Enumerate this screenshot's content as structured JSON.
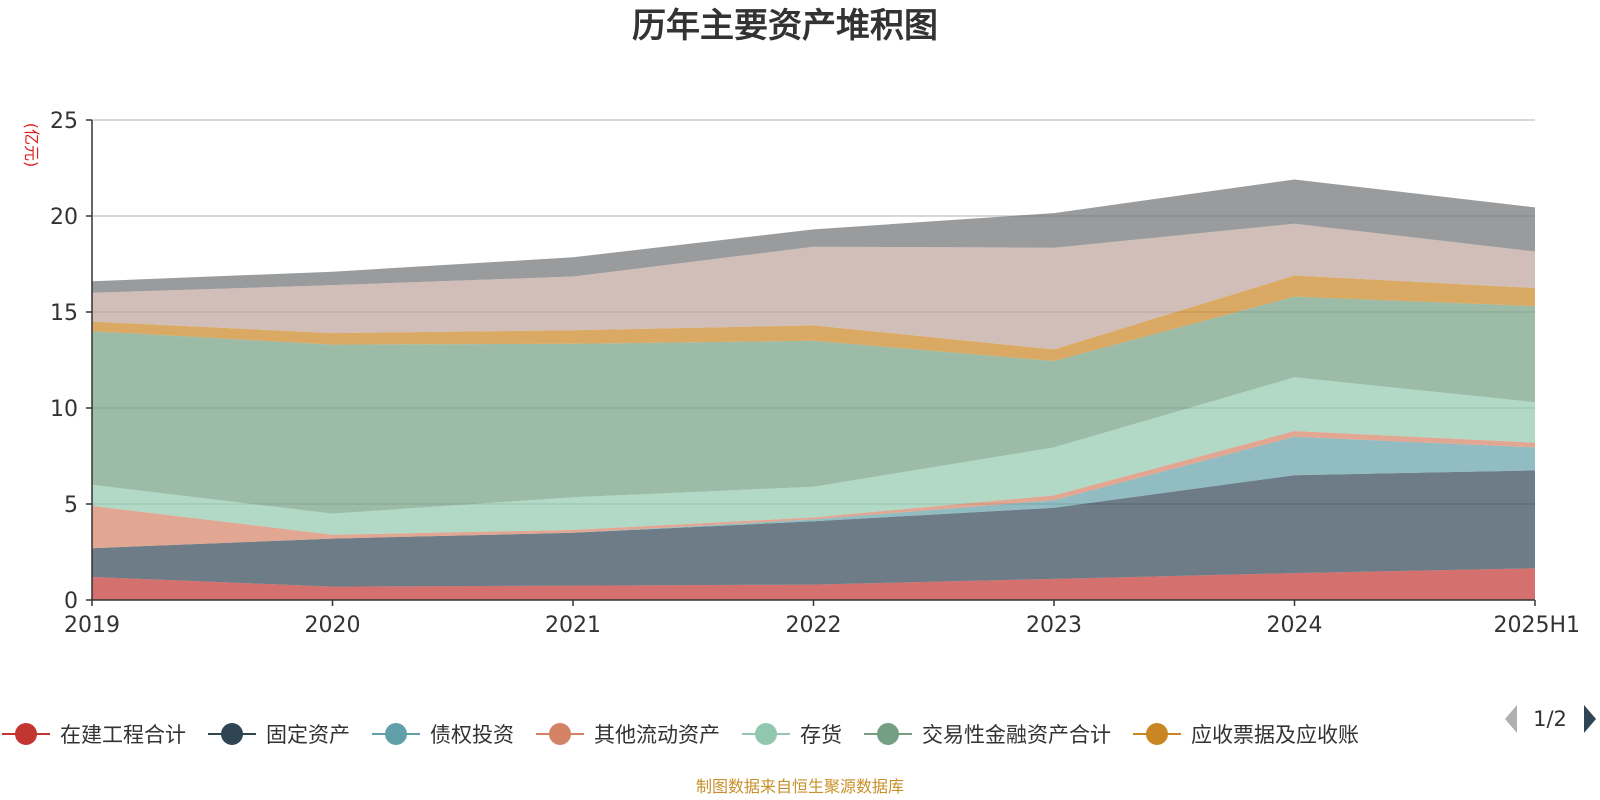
{
  "chart_data": {
    "type": "area",
    "stacked": true,
    "title": "历年主要资产堆积图",
    "ylabel": "(亿元)",
    "ylim": [
      0,
      25
    ],
    "yticks": [
      0,
      5,
      10,
      15,
      20,
      25
    ],
    "grid": true,
    "legend_position": "bottom",
    "categories": [
      "2019",
      "2020",
      "2021",
      "2022",
      "2023",
      "2024",
      "2025H1"
    ],
    "series": [
      {
        "name": "在建工程合计",
        "color": "#c23531",
        "values": [
          1.2,
          0.7,
          0.75,
          0.8,
          1.1,
          1.4,
          1.65
        ]
      },
      {
        "name": "固定资产",
        "color": "#2f4554",
        "values": [
          1.5,
          2.5,
          2.75,
          3.3,
          3.7,
          5.1,
          5.1
        ]
      },
      {
        "name": "债权投资",
        "color": "#61a0a8",
        "values": [
          0.0,
          0.0,
          0.0,
          0.1,
          0.4,
          2.0,
          1.2
        ]
      },
      {
        "name": "其他流动资产",
        "color": "#d48265",
        "values": [
          2.2,
          0.2,
          0.15,
          0.1,
          0.25,
          0.3,
          0.25
        ]
      },
      {
        "name": "存货",
        "color": "#91c7ae",
        "values": [
          1.1,
          1.1,
          1.7,
          1.6,
          2.5,
          2.8,
          2.1
        ]
      },
      {
        "name": "交易性金融资产合计",
        "color": "#749f83",
        "values": [
          8.0,
          8.8,
          8.0,
          7.6,
          4.5,
          4.2,
          5.0
        ]
      },
      {
        "name": "应收票据及应收账",
        "color": "#ca8622",
        "values": [
          0.5,
          0.6,
          0.7,
          0.8,
          0.6,
          1.1,
          0.95
        ]
      },
      {
        "name": "",
        "color": "#bda29a",
        "values": [
          1.5,
          2.5,
          2.8,
          4.1,
          5.3,
          2.7,
          1.9
        ]
      },
      {
        "name": "",
        "color": "#6e7074",
        "values": [
          0.6,
          0.7,
          1.0,
          0.9,
          1.8,
          2.3,
          2.3
        ]
      }
    ]
  },
  "legend": {
    "page": "1/2"
  },
  "footer": {
    "source": "制图数据来自恒生聚源数据库"
  }
}
